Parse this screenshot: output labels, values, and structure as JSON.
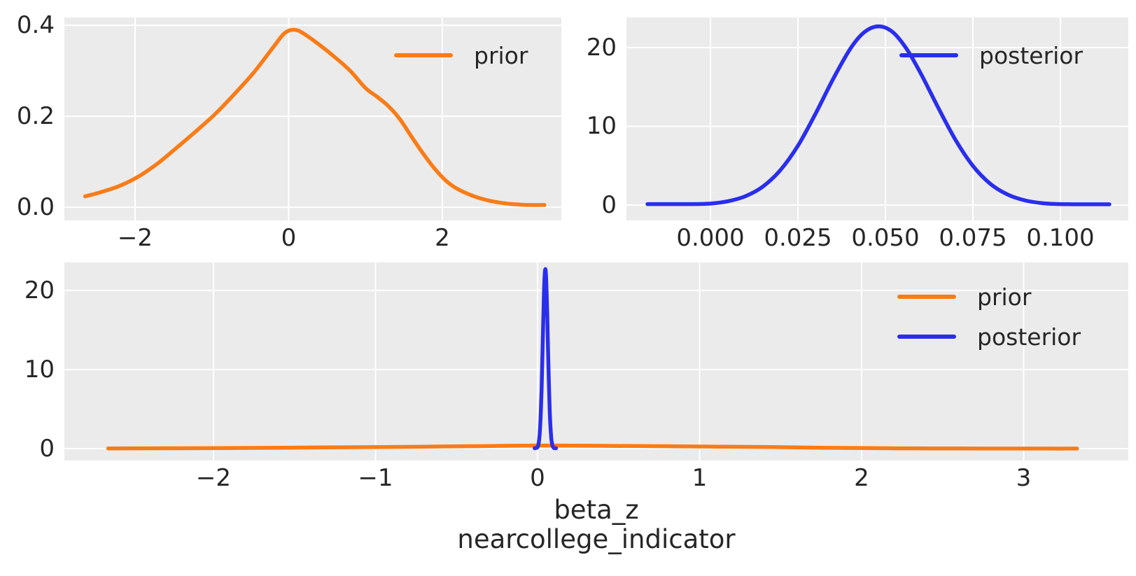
{
  "figure_background": "#ffffff",
  "colors": {
    "prior": "#fa7c17",
    "posterior": "#2a2eec",
    "axes_background": "#ebebeb",
    "grid": "#ffffff",
    "text": "#262626"
  },
  "xlabel_line1": "beta_z",
  "xlabel_line2": "nearcollege_indicator",
  "chart_data": [
    {
      "type": "line",
      "title": "",
      "position": "top-left",
      "xlabel": "",
      "ylabel": "",
      "grid": true,
      "xlim": [
        -2.92,
        3.55
      ],
      "ylim": [
        -0.029,
        0.417
      ],
      "xticks": {
        "values": [
          -2,
          0,
          2
        ],
        "labels": [
          "−2",
          "0",
          "2"
        ]
      },
      "yticks": {
        "values": [
          0.0,
          0.2,
          0.4
        ],
        "labels": [
          "0.0",
          "0.2",
          "0.4"
        ]
      },
      "legend": {
        "position": "upper-right",
        "entries": [
          {
            "label": "prior",
            "color": "#fa7c17"
          }
        ]
      },
      "series": [
        {
          "name": "prior",
          "color": "#fa7c17",
          "x": [
            -2.65,
            -2.45,
            -2.2,
            -1.95,
            -1.7,
            -1.45,
            -1.2,
            -0.95,
            -0.7,
            -0.45,
            -0.2,
            -0.05,
            0.08,
            0.2,
            0.4,
            0.6,
            0.8,
            1.0,
            1.15,
            1.3,
            1.45,
            1.6,
            1.75,
            1.9,
            2.05,
            2.2,
            2.4,
            2.6,
            2.8,
            3.0,
            3.15,
            3.33
          ],
          "y": [
            0.024,
            0.033,
            0.047,
            0.068,
            0.097,
            0.132,
            0.168,
            0.206,
            0.25,
            0.297,
            0.352,
            0.383,
            0.39,
            0.381,
            0.357,
            0.33,
            0.3,
            0.262,
            0.243,
            0.222,
            0.193,
            0.155,
            0.118,
            0.085,
            0.058,
            0.04,
            0.025,
            0.015,
            0.009,
            0.006,
            0.005,
            0.005
          ]
        }
      ]
    },
    {
      "type": "line",
      "title": "",
      "position": "top-right",
      "xlabel": "",
      "ylabel": "",
      "grid": true,
      "xlim": [
        -0.024,
        0.1194
      ],
      "ylim": [
        -1.956,
        23.82
      ],
      "xticks": {
        "values": [
          0.0,
          0.025,
          0.05,
          0.075,
          0.1
        ],
        "labels": [
          "0.000",
          "0.025",
          "0.050",
          "0.075",
          "0.100"
        ]
      },
      "yticks": {
        "values": [
          0,
          10,
          20
        ],
        "labels": [
          "0",
          "10",
          "20"
        ]
      },
      "legend": {
        "position": "upper-right",
        "entries": [
          {
            "label": "posterior",
            "color": "#2a2eec"
          }
        ]
      },
      "series": [
        {
          "name": "posterior",
          "color": "#2a2eec",
          "x": [
            -0.018,
            -0.005,
            0.0,
            0.005,
            0.01,
            0.015,
            0.02,
            0.025,
            0.03,
            0.035,
            0.04,
            0.044,
            0.048,
            0.052,
            0.056,
            0.06,
            0.065,
            0.07,
            0.075,
            0.08,
            0.085,
            0.09,
            0.095,
            0.1,
            0.107,
            0.114
          ],
          "y": [
            0.12,
            0.12,
            0.19,
            0.48,
            1.12,
            2.35,
            4.44,
            7.54,
            11.57,
            15.96,
            19.87,
            21.96,
            22.7,
            22.0,
            19.87,
            16.8,
            12.44,
            8.3,
            4.98,
            2.69,
            1.32,
            0.58,
            0.23,
            0.12,
            0.1,
            0.1
          ]
        }
      ]
    },
    {
      "type": "line",
      "title": "",
      "position": "bottom",
      "xlabel_line1": "beta_z",
      "xlabel_line2": "nearcollege_indicator",
      "ylabel": "",
      "grid": true,
      "xlim": [
        -2.92,
        3.646
      ],
      "ylim": [
        -1.504,
        23.54
      ],
      "xticks": {
        "values": [
          -2,
          -1,
          0,
          1,
          2,
          3
        ],
        "labels": [
          "−2",
          "−1",
          "0",
          "1",
          "2",
          "3"
        ]
      },
      "yticks": {
        "values": [
          0,
          10,
          20
        ],
        "labels": [
          "0",
          "10",
          "20"
        ]
      },
      "legend": {
        "position": "upper-right",
        "entries": [
          {
            "label": "prior",
            "color": "#fa7c17"
          },
          {
            "label": "posterior",
            "color": "#2a2eec"
          }
        ]
      },
      "series": [
        {
          "name": "prior",
          "color": "#fa7c17",
          "x": [
            -2.65,
            -2.45,
            -2.2,
            -1.95,
            -1.7,
            -1.45,
            -1.2,
            -0.95,
            -0.7,
            -0.45,
            -0.2,
            -0.05,
            0.08,
            0.2,
            0.4,
            0.6,
            0.8,
            1.0,
            1.15,
            1.3,
            1.45,
            1.6,
            1.75,
            1.9,
            2.05,
            2.2,
            2.4,
            2.6,
            2.8,
            3.0,
            3.15,
            3.33
          ],
          "y": [
            0.024,
            0.033,
            0.047,
            0.068,
            0.097,
            0.132,
            0.168,
            0.206,
            0.25,
            0.297,
            0.352,
            0.383,
            0.39,
            0.381,
            0.357,
            0.33,
            0.3,
            0.262,
            0.243,
            0.222,
            0.193,
            0.155,
            0.118,
            0.085,
            0.058,
            0.04,
            0.025,
            0.015,
            0.009,
            0.006,
            0.005,
            0.005
          ]
        },
        {
          "name": "posterior",
          "color": "#2a2eec",
          "x": [
            -0.018,
            -0.005,
            0.0,
            0.005,
            0.01,
            0.015,
            0.02,
            0.025,
            0.03,
            0.035,
            0.04,
            0.044,
            0.048,
            0.052,
            0.056,
            0.06,
            0.065,
            0.07,
            0.075,
            0.08,
            0.085,
            0.09,
            0.095,
            0.1,
            0.107,
            0.114
          ],
          "y": [
            0.05,
            0.1,
            0.19,
            0.48,
            1.12,
            2.35,
            4.44,
            7.54,
            11.57,
            15.96,
            19.87,
            21.96,
            22.7,
            22.0,
            19.87,
            16.8,
            12.44,
            8.3,
            4.98,
            2.69,
            1.32,
            0.58,
            0.23,
            0.1,
            0.05,
            0.05
          ]
        }
      ]
    }
  ]
}
